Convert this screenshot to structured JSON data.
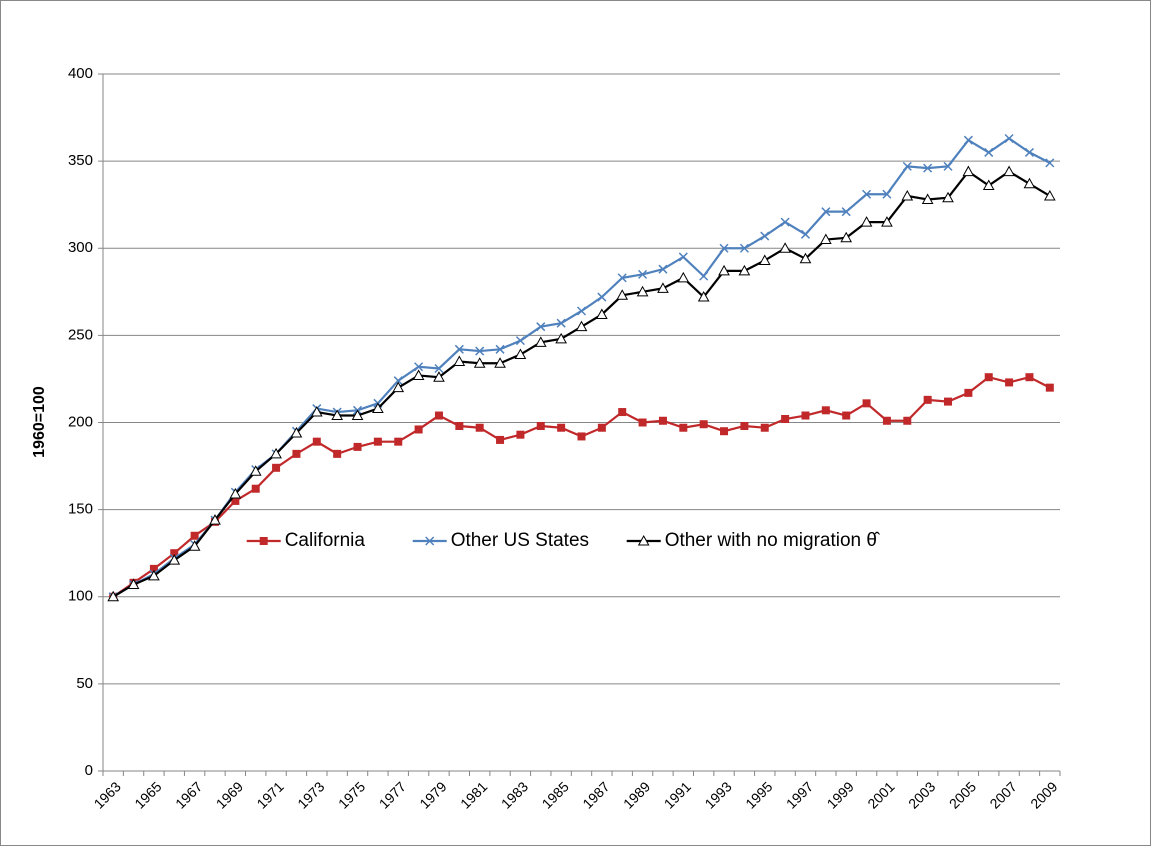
{
  "chart_data": {
    "type": "line",
    "ylabel": "1960=100",
    "categories": [
      "1963",
      null,
      "1965",
      null,
      "1967",
      null,
      "1969",
      null,
      "1971",
      null,
      "1973",
      null,
      "1975",
      null,
      "1977",
      null,
      "1979",
      null,
      "1981",
      null,
      "1983",
      null,
      "1985",
      null,
      "1987",
      null,
      "1989",
      null,
      "1991",
      null,
      "1993",
      null,
      "1995",
      null,
      "1997",
      null,
      "1999",
      null,
      "2001",
      null,
      "2003",
      null,
      "2005",
      null,
      "2007",
      null,
      "2009"
    ],
    "series": [
      {
        "name": "California",
        "color": "#c0282a",
        "marker": "square",
        "values": [
          100,
          108,
          116,
          125,
          135,
          143,
          155,
          162,
          174,
          182,
          189,
          182,
          186,
          189,
          189,
          196,
          204,
          198,
          197,
          190,
          193,
          198,
          197,
          192,
          197,
          206,
          200,
          201,
          197,
          199,
          195,
          198,
          197,
          202,
          204,
          207,
          204,
          211,
          201,
          201,
          213,
          212,
          217,
          226,
          223,
          226,
          220
        ]
      },
      {
        "name": "Other US States",
        "color": "#4f81bd",
        "marker": "x",
        "values": [
          100,
          107,
          113,
          122,
          130,
          144,
          160,
          173,
          182,
          195,
          208,
          206,
          207,
          211,
          224,
          232,
          231,
          242,
          241,
          242,
          247,
          255,
          257,
          264,
          272,
          283,
          285,
          288,
          295,
          284,
          300,
          300,
          307,
          315,
          308,
          321,
          321,
          331,
          331,
          347,
          346,
          347,
          362,
          355,
          363,
          355,
          349
        ]
      },
      {
        "name": "Other with no migration θ̂",
        "color": "#000000",
        "marker": "triangle",
        "values": [
          100,
          107,
          112,
          121,
          129,
          144,
          159,
          172,
          182,
          194,
          206,
          204,
          204,
          208,
          220,
          227,
          226,
          235,
          234,
          234,
          239,
          246,
          248,
          255,
          262,
          273,
          275,
          277,
          283,
          272,
          287,
          287,
          293,
          300,
          294,
          305,
          306,
          315,
          315,
          330,
          328,
          329,
          344,
          336,
          344,
          337,
          330
        ]
      }
    ],
    "ylim": [
      0,
      400
    ],
    "yticks": [
      0,
      50,
      100,
      150,
      200,
      250,
      300,
      350,
      400
    ],
    "grid": true,
    "legend": "lower center"
  }
}
